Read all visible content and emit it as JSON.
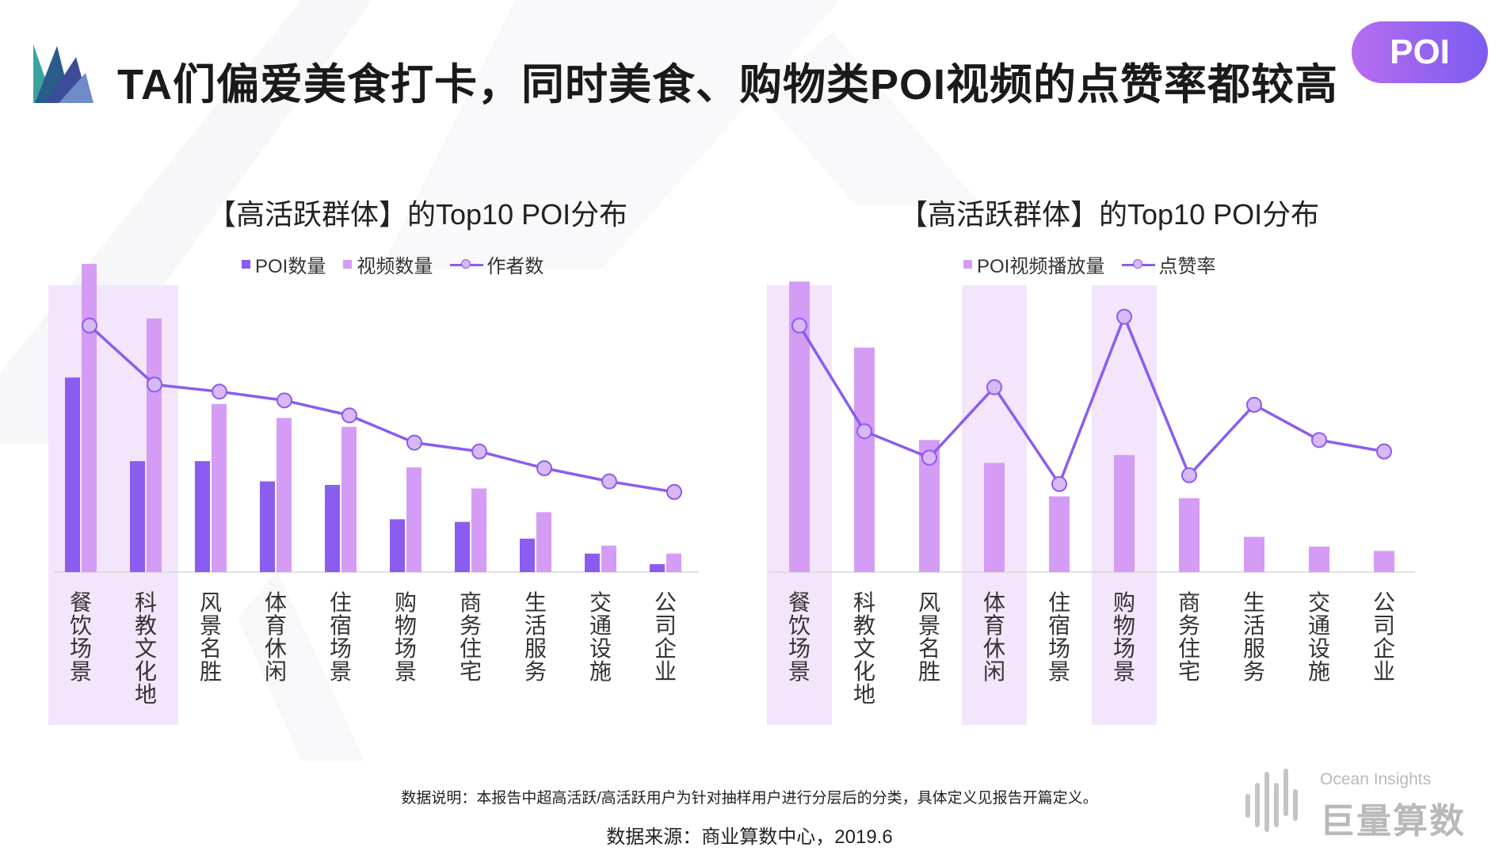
{
  "header": {
    "title": "TA们偏爱美食打卡，同时美食、购物类POI视频的点赞率都较高",
    "badge": "POI"
  },
  "colors": {
    "poi": "#8b5cf0",
    "video": "#d59cf5",
    "line": "#8b5cf0",
    "highlight": "#f3e5fb"
  },
  "chart_data": [
    {
      "type": "bar",
      "title": "【高活跃群体】的Top10 POI分布",
      "categories": [
        "餐饮场景",
        "科教文化地",
        "风景名胜",
        "体育休闲",
        "住宿场景",
        "购物场景",
        "商务住宅",
        "生活服务",
        "交通设施",
        "公司企业"
      ],
      "series": [
        {
          "name": "POI数量",
          "kind": "bar",
          "values": [
            221,
            126,
            126,
            103,
            99,
            60,
            57,
            38,
            21,
            9
          ]
        },
        {
          "name": "视频数量",
          "kind": "bar",
          "values": [
            350,
            288,
            191,
            175,
            165,
            119,
            95,
            68,
            30,
            21
          ]
        },
        {
          "name": "作者数",
          "kind": "line",
          "values": [
            280,
            213,
            205,
            195,
            178,
            147,
            137,
            118,
            103,
            91
          ]
        }
      ],
      "highlight": [
        0,
        1
      ],
      "ylim": [
        0,
        360
      ]
    },
    {
      "type": "bar",
      "title": "【高活跃群体】的Top10 POI分布",
      "categories": [
        "餐饮场景",
        "科教文化地",
        "风景名胜",
        "体育休闲",
        "住宿场景",
        "购物场景",
        "商务住宅",
        "生活服务",
        "交通设施",
        "公司企业"
      ],
      "series": [
        {
          "name": "POI视频播放量",
          "kind": "bar",
          "values": [
            330,
            255,
            150,
            124,
            86,
            133,
            84,
            40,
            29,
            24
          ]
        },
        {
          "name": "点赞率",
          "kind": "line",
          "values": [
            280,
            160,
            130,
            210,
            100,
            290,
            110,
            190,
            150,
            137
          ]
        }
      ],
      "highlight": [
        0,
        3,
        5
      ],
      "ylim": [
        0,
        360
      ]
    }
  ],
  "footer": {
    "note": "数据说明：本报告中超高活跃/高活跃用户为针对抽样用户进行分层后的分类，具体定义见报告开篇定义。",
    "source": "数据来源：商业算数中心，2019.6"
  },
  "brand": {
    "en": "Ocean Insights",
    "cn": "巨量算数"
  }
}
